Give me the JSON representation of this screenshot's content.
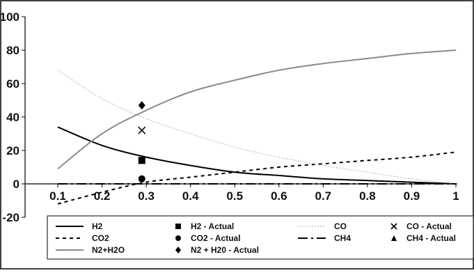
{
  "chart_data": {
    "type": "line",
    "title": "",
    "xlabel": "",
    "ylabel": "",
    "xlim": [
      0.1,
      1.0
    ],
    "ylim": [
      -20,
      100
    ],
    "x_ticks": [
      "0.1",
      "0.2",
      "0.3",
      "0.4",
      "0.5",
      "0.6",
      "0.7",
      "0.8",
      "0.9",
      "1"
    ],
    "y_ticks": [
      "-20",
      "0",
      "20",
      "40",
      "60",
      "80",
      "100"
    ],
    "grid": false,
    "legend_position": "bottom",
    "line_series": [
      {
        "name": "H2",
        "color": "#000000",
        "dash": "solid",
        "x": [
          0.1,
          0.2,
          0.3,
          0.4,
          0.5,
          0.6,
          0.7,
          0.8,
          0.9,
          1.0
        ],
        "y": [
          34,
          23,
          16,
          11,
          7,
          5,
          3,
          2,
          1,
          0
        ]
      },
      {
        "name": "CO2",
        "color": "#000000",
        "dash": "dashed",
        "x": [
          0.1,
          0.2,
          0.3,
          0.4,
          0.5,
          0.6,
          0.7,
          0.8,
          0.9,
          1.0
        ],
        "y": [
          -12,
          -5,
          1,
          4,
          7,
          10,
          12,
          14,
          16,
          19
        ]
      },
      {
        "name": "N2+H2O",
        "color": "#8a8a8a",
        "dash": "solid",
        "x": [
          0.1,
          0.2,
          0.3,
          0.4,
          0.5,
          0.6,
          0.7,
          0.8,
          0.9,
          1.0
        ],
        "y": [
          9,
          30,
          44,
          55,
          62,
          68,
          72,
          75,
          78,
          80
        ]
      },
      {
        "name": "CO",
        "color": "#a8a8a8",
        "dash": "dotted",
        "x": [
          0.1,
          0.2,
          0.3,
          0.4,
          0.5,
          0.6,
          0.7,
          0.8,
          0.9,
          1.0
        ],
        "y": [
          68,
          51,
          39,
          30,
          22,
          16,
          11,
          7,
          3,
          0
        ]
      },
      {
        "name": "CH4",
        "color": "#000000",
        "dash": "dashdot",
        "x": [
          0.1,
          0.2,
          0.3,
          0.4,
          0.5,
          0.6,
          0.7,
          0.8,
          0.9,
          1.0
        ],
        "y": [
          0,
          0,
          0,
          0,
          0,
          0,
          0,
          0,
          0,
          0
        ]
      }
    ],
    "point_series": [
      {
        "name": "H2 - Actual",
        "marker": "square",
        "x": [
          0.29
        ],
        "y": [
          14
        ]
      },
      {
        "name": "CO2 - Actual",
        "marker": "circle",
        "x": [
          0.29
        ],
        "y": [
          3
        ]
      },
      {
        "name": "N2 + H20 - Actual",
        "marker": "diamond",
        "x": [
          0.29
        ],
        "y": [
          47
        ]
      },
      {
        "name": "CO - Actual",
        "marker": "x",
        "x": [
          0.29
        ],
        "y": [
          32
        ]
      },
      {
        "name": "CH4 - Actual",
        "marker": "triangle",
        "x": [],
        "y": []
      }
    ],
    "legend": [
      {
        "label": "H2",
        "kind": "line",
        "ref": "H2"
      },
      {
        "label": "H2 - Actual",
        "kind": "marker",
        "ref": "square"
      },
      {
        "label": "CO",
        "kind": "line",
        "ref": "CO"
      },
      {
        "label": "CO - Actual",
        "kind": "marker",
        "ref": "x"
      },
      {
        "label": "CO2",
        "kind": "line",
        "ref": "CO2"
      },
      {
        "label": "CO2 - Actual",
        "kind": "marker",
        "ref": "circle"
      },
      {
        "label": "CH4",
        "kind": "line",
        "ref": "CH4"
      },
      {
        "label": "CH4 - Actual",
        "kind": "marker",
        "ref": "triangle"
      },
      {
        "label": "N2+H2O",
        "kind": "line",
        "ref": "N2+H2O"
      },
      {
        "label": "N2 + H20 - Actual",
        "kind": "marker",
        "ref": "diamond"
      }
    ]
  }
}
